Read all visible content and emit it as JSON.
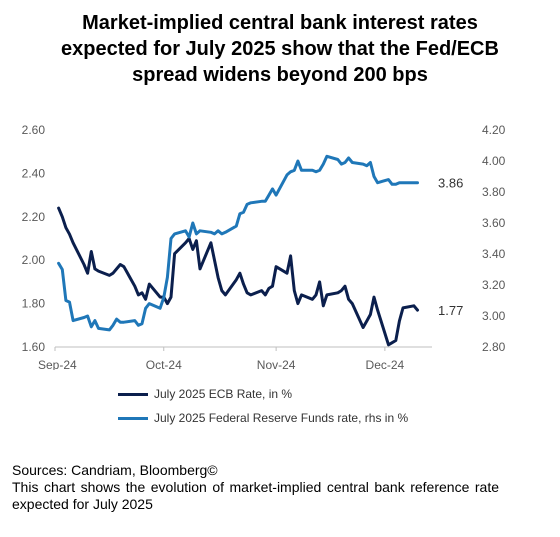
{
  "title_lines": [
    "Market-implied central bank interest rates",
    "expected for July 2025 show that the Fed/ECB",
    "spread widens beyond 200 bps"
  ],
  "sources": "Sources: Candriam, Bloomberg©",
  "note": "This chart shows the evolution of market-implied central bank reference rate expected for July 2025",
  "colors": {
    "ecb": "#0b1f4d",
    "fed": "#1f77b8"
  },
  "chart_data": {
    "type": "line",
    "x_ticks": [
      "Sep-24",
      "Oct-24",
      "Nov-24",
      "Dec-24"
    ],
    "y_left": {
      "ticks": [
        "2.60",
        "2.40",
        "2.20",
        "2.00",
        "1.80",
        "1.60"
      ],
      "range": [
        1.6,
        2.6
      ]
    },
    "y_right": {
      "ticks": [
        "4.20",
        "4.00",
        "3.80",
        "3.60",
        "3.40",
        "3.20",
        "3.00",
        "2.80"
      ],
      "range": [
        2.8,
        4.2
      ]
    },
    "legend_position": "bottom",
    "series": [
      {
        "name": "July 2025 ECB  Rate, in %",
        "axis": "left",
        "end_label": "1.77",
        "dates": [
          "2024-09-02",
          "2024-09-03",
          "2024-09-04",
          "2024-09-05",
          "2024-09-06",
          "2024-09-09",
          "2024-09-10",
          "2024-09-11",
          "2024-09-12",
          "2024-09-13",
          "2024-09-16",
          "2024-09-17",
          "2024-09-18",
          "2024-09-19",
          "2024-09-20",
          "2024-09-23",
          "2024-09-24",
          "2024-09-25",
          "2024-09-26",
          "2024-09-27",
          "2024-09-30",
          "2024-10-01",
          "2024-10-02",
          "2024-10-03",
          "2024-10-04",
          "2024-10-07",
          "2024-10-08",
          "2024-10-09",
          "2024-10-10",
          "2024-10-11",
          "2024-10-14",
          "2024-10-15",
          "2024-10-16",
          "2024-10-17",
          "2024-10-18",
          "2024-10-21",
          "2024-10-22",
          "2024-10-23",
          "2024-10-24",
          "2024-10-25",
          "2024-10-28",
          "2024-10-29",
          "2024-10-30",
          "2024-10-31",
          "2024-11-01",
          "2024-11-04",
          "2024-11-05",
          "2024-11-06",
          "2024-11-07",
          "2024-11-08",
          "2024-11-11",
          "2024-11-12",
          "2024-11-13",
          "2024-11-14",
          "2024-11-15",
          "2024-11-18",
          "2024-11-19",
          "2024-11-20",
          "2024-11-21",
          "2024-11-22",
          "2024-11-25",
          "2024-11-26",
          "2024-11-27",
          "2024-11-28",
          "2024-11-29",
          "2024-12-02",
          "2024-12-03",
          "2024-12-04",
          "2024-12-05",
          "2024-12-06",
          "2024-12-09",
          "2024-12-10"
        ],
        "values": [
          2.24,
          2.2,
          2.15,
          2.12,
          2.08,
          1.98,
          1.94,
          2.04,
          1.96,
          1.95,
          1.93,
          1.94,
          1.96,
          1.98,
          1.97,
          1.88,
          1.84,
          1.85,
          1.82,
          1.89,
          1.83,
          1.83,
          1.8,
          1.83,
          2.03,
          2.08,
          2.1,
          2.05,
          2.09,
          1.96,
          2.08,
          2.0,
          1.92,
          1.86,
          1.84,
          1.91,
          1.94,
          1.89,
          1.85,
          1.84,
          1.86,
          1.84,
          1.87,
          1.88,
          1.97,
          1.94,
          2.02,
          1.86,
          1.8,
          1.84,
          1.82,
          1.84,
          1.9,
          1.79,
          1.84,
          1.85,
          1.86,
          1.88,
          1.82,
          1.8,
          1.69,
          1.72,
          1.75,
          1.83,
          1.77,
          1.61,
          1.62,
          1.63,
          1.72,
          1.78,
          1.79,
          1.77
        ]
      },
      {
        "name": "July 2025 Federal Reserve Funds rate, rhs in %",
        "axis": "right",
        "end_label": "3.86",
        "dates": [
          "2024-09-02",
          "2024-09-03",
          "2024-09-04",
          "2024-09-05",
          "2024-09-06",
          "2024-09-09",
          "2024-09-10",
          "2024-09-11",
          "2024-09-12",
          "2024-09-13",
          "2024-09-16",
          "2024-09-17",
          "2024-09-18",
          "2024-09-19",
          "2024-09-20",
          "2024-09-23",
          "2024-09-24",
          "2024-09-25",
          "2024-09-26",
          "2024-09-27",
          "2024-09-30",
          "2024-10-01",
          "2024-10-02",
          "2024-10-03",
          "2024-10-04",
          "2024-10-07",
          "2024-10-08",
          "2024-10-09",
          "2024-10-10",
          "2024-10-11",
          "2024-10-14",
          "2024-10-15",
          "2024-10-16",
          "2024-10-17",
          "2024-10-18",
          "2024-10-21",
          "2024-10-22",
          "2024-10-23",
          "2024-10-24",
          "2024-10-25",
          "2024-10-28",
          "2024-10-29",
          "2024-10-30",
          "2024-10-31",
          "2024-11-01",
          "2024-11-04",
          "2024-11-05",
          "2024-11-06",
          "2024-11-07",
          "2024-11-08",
          "2024-11-11",
          "2024-11-12",
          "2024-11-13",
          "2024-11-14",
          "2024-11-15",
          "2024-11-18",
          "2024-11-19",
          "2024-11-20",
          "2024-11-21",
          "2024-11-22",
          "2024-11-25",
          "2024-11-26",
          "2024-11-27",
          "2024-11-28",
          "2024-11-29",
          "2024-12-02",
          "2024-12-03",
          "2024-12-04",
          "2024-12-05",
          "2024-12-06",
          "2024-12-09",
          "2024-12-10"
        ],
        "values": [
          3.34,
          3.3,
          3.1,
          3.09,
          2.97,
          2.99,
          3.0,
          2.93,
          2.97,
          2.92,
          2.91,
          2.94,
          2.98,
          2.96,
          2.96,
          2.97,
          2.94,
          2.95,
          3.05,
          3.08,
          3.05,
          3.12,
          3.25,
          3.5,
          3.53,
          3.55,
          3.51,
          3.6,
          3.53,
          3.55,
          3.54,
          3.53,
          3.55,
          3.53,
          3.54,
          3.58,
          3.66,
          3.67,
          3.72,
          3.73,
          3.74,
          3.74,
          3.78,
          3.82,
          3.78,
          3.91,
          3.93,
          3.94,
          4.0,
          3.94,
          3.94,
          3.93,
          3.94,
          3.98,
          4.03,
          4.01,
          3.98,
          3.99,
          4.02,
          3.99,
          3.98,
          3.97,
          3.99,
          3.9,
          3.86,
          3.88,
          3.85,
          3.85,
          3.86,
          3.86,
          3.86,
          3.86
        ]
      }
    ]
  }
}
